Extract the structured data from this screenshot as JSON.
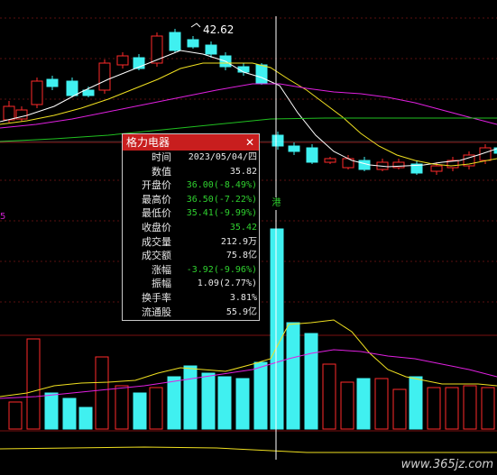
{
  "popup": {
    "title": "格力电器",
    "close_icon": "close-icon",
    "rows": [
      {
        "label": "时间",
        "value": "2023/05/04/四",
        "color": "white"
      },
      {
        "label": "数值",
        "value": "35.82",
        "color": "white"
      },
      {
        "label": "开盘价",
        "value": "36.00(-8.49%)",
        "color": "green"
      },
      {
        "label": "最高价",
        "value": "36.50(-7.22%)",
        "color": "green"
      },
      {
        "label": "最低价",
        "value": "35.41(-9.99%)",
        "color": "green"
      },
      {
        "label": "收盘价",
        "value": "35.42",
        "color": "green"
      },
      {
        "label": "成交量",
        "value": "212.9万",
        "color": "white"
      },
      {
        "label": "成交额",
        "value": "75.8亿",
        "color": "white"
      },
      {
        "label": "涨幅",
        "value": "-3.92(-9.96%)",
        "color": "green"
      },
      {
        "label": "振幅",
        "value": "1.09(2.77%)",
        "color": "white"
      },
      {
        "label": "换手率",
        "value": "3.81%",
        "color": "white"
      },
      {
        "label": "流通股",
        "value": "55.9亿",
        "color": "white"
      }
    ]
  },
  "peak_label": "42.62",
  "axis_label": "5",
  "marker_label": "港",
  "watermark": "www.365jz.com",
  "colors": {
    "up": "#ff2a2a",
    "down": "#40f0f0",
    "ma5": "#ffffff",
    "ma10": "#f0e020",
    "ma20": "#e020e0",
    "ma60": "#20c020"
  }
}
